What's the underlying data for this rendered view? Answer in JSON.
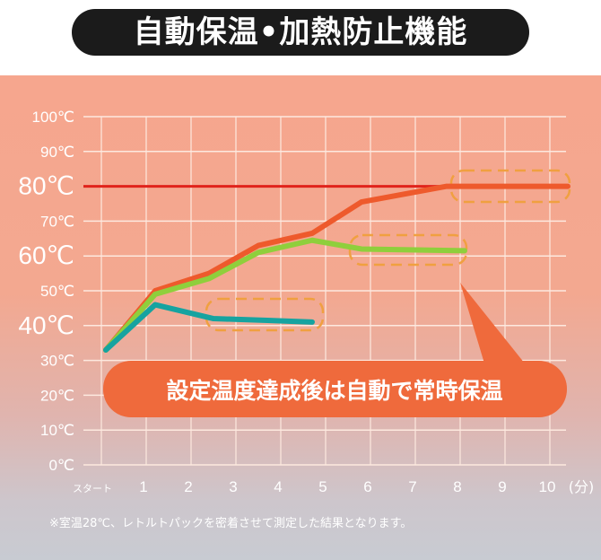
{
  "title": "自動保温•加熱防止機能",
  "callout": "設定温度達成後は自動で常時保温",
  "note": "※室温28℃、レトルトパックを密着させて測定した結果となります。",
  "colors": {
    "threshold": "#e0231b",
    "red_series": "#ee5a2c",
    "green_series": "#8fcf3c",
    "teal_series": "#16a3a0",
    "callout": "#ef6a3c",
    "dashed_box": "#f0a040"
  },
  "chart_data": {
    "type": "line",
    "xlabel_unit": "(分)",
    "x_ticks": [
      "スタート",
      "1",
      "2",
      "3",
      "4",
      "5",
      "6",
      "7",
      "8",
      "9",
      "10"
    ],
    "y_ticks": [
      "0℃",
      "10℃",
      "20℃",
      "30℃",
      "40℃",
      "50℃",
      "60℃",
      "70℃",
      "80℃",
      "90℃",
      "100℃"
    ],
    "y_emphasized": [
      "40℃",
      "60℃",
      "80℃"
    ],
    "xlim": [
      0,
      10
    ],
    "ylim": [
      0,
      100
    ],
    "grid": true,
    "threshold": 80,
    "series": [
      {
        "color": "#ee5a2c",
        "points": [
          [
            0.1,
            33
          ],
          [
            1.2,
            50
          ],
          [
            2.4,
            55
          ],
          [
            3.5,
            63
          ],
          [
            4.7,
            66.5
          ],
          [
            5.8,
            75.5
          ],
          [
            7.7,
            80
          ],
          [
            10.4,
            80
          ]
        ]
      },
      {
        "color": "#8fcf3c",
        "points": [
          [
            0.1,
            33
          ],
          [
            1.2,
            49
          ],
          [
            2.4,
            53.5
          ],
          [
            3.5,
            61
          ],
          [
            4.7,
            64.5
          ],
          [
            5.8,
            62
          ],
          [
            8.1,
            61.5
          ]
        ]
      },
      {
        "color": "#16a3a0",
        "points": [
          [
            0.1,
            33
          ],
          [
            1.2,
            46
          ],
          [
            2.5,
            42
          ],
          [
            3.7,
            41.5
          ],
          [
            4.7,
            41
          ]
        ]
      }
    ]
  }
}
